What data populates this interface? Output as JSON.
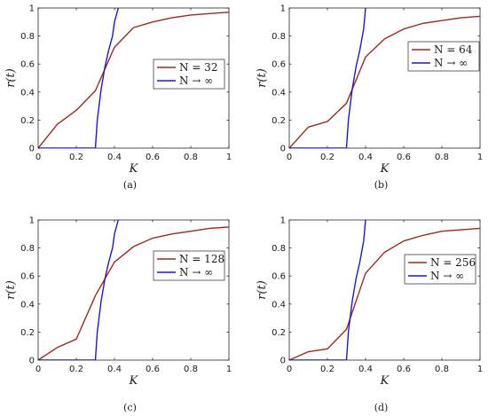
{
  "chart_data": [
    {
      "type": "line",
      "caption": "(a)",
      "xlabel": "K",
      "ylabel": "r(t)",
      "xlim": [
        0,
        1
      ],
      "ylim": [
        0,
        1
      ],
      "xticks": [
        "0",
        "0.2",
        "0.4",
        "0.6",
        "0.8",
        "1"
      ],
      "yticks": [
        "0",
        "0.2",
        "0.4",
        "0.6",
        "0.8",
        "1"
      ],
      "grid": false,
      "legend_position": "center-right",
      "series": [
        {
          "name": "N = 32",
          "color": "#a0291b",
          "x": [
            0,
            0.1,
            0.2,
            0.3,
            0.4,
            0.5,
            0.6,
            0.7,
            0.8,
            0.9,
            1.0
          ],
          "y": [
            0,
            0.17,
            0.27,
            0.41,
            0.72,
            0.86,
            0.9,
            0.93,
            0.95,
            0.96,
            0.97
          ]
        },
        {
          "name": "N → ∞",
          "color": "#1a1acc",
          "x": [
            0,
            0.3,
            0.31,
            0.33,
            0.35,
            0.37,
            0.39,
            0.4,
            0.42
          ],
          "y": [
            0,
            0,
            0.2,
            0.42,
            0.58,
            0.7,
            0.8,
            0.9,
            1.0
          ]
        }
      ]
    },
    {
      "type": "line",
      "caption": "(b)",
      "xlabel": "K",
      "ylabel": "r(t)",
      "xlim": [
        0,
        1
      ],
      "ylim": [
        0,
        1
      ],
      "xticks": [
        "0",
        "0.2",
        "0.4",
        "0.6",
        "0.8",
        "1"
      ],
      "yticks": [
        "0",
        "0.2",
        "0.4",
        "0.6",
        "0.8",
        "1"
      ],
      "grid": false,
      "legend_position": "center-right",
      "series": [
        {
          "name": "N = 64",
          "color": "#a0291b",
          "x": [
            0,
            0.1,
            0.2,
            0.3,
            0.4,
            0.5,
            0.6,
            0.7,
            0.8,
            0.9,
            1.0
          ],
          "y": [
            0,
            0.15,
            0.19,
            0.32,
            0.65,
            0.78,
            0.85,
            0.89,
            0.91,
            0.93,
            0.94
          ]
        },
        {
          "name": "N → ∞",
          "color": "#1a1acc",
          "x": [
            0,
            0.3,
            0.31,
            0.33,
            0.35,
            0.37,
            0.39,
            0.4
          ],
          "y": [
            0,
            0,
            0.2,
            0.42,
            0.58,
            0.7,
            0.85,
            1.0
          ]
        }
      ]
    },
    {
      "type": "line",
      "caption": "(c)",
      "xlabel": "K",
      "ylabel": "r(t)",
      "xlim": [
        0,
        1
      ],
      "ylim": [
        0,
        1
      ],
      "xticks": [
        "0",
        "0.2",
        "0.4",
        "0.6",
        "0.8",
        "1"
      ],
      "yticks": [
        "0",
        "0.2",
        "0.4",
        "0.6",
        "0.8",
        "1"
      ],
      "grid": false,
      "legend_position": "center-right",
      "series": [
        {
          "name": "N = 128",
          "color": "#a0291b",
          "x": [
            0,
            0.1,
            0.2,
            0.3,
            0.4,
            0.5,
            0.6,
            0.7,
            0.8,
            0.9,
            1.0
          ],
          "y": [
            0,
            0.09,
            0.15,
            0.46,
            0.7,
            0.81,
            0.87,
            0.9,
            0.92,
            0.94,
            0.95
          ]
        },
        {
          "name": "N → ∞",
          "color": "#1a1acc",
          "x": [
            0,
            0.3,
            0.31,
            0.33,
            0.35,
            0.37,
            0.39,
            0.4,
            0.42
          ],
          "y": [
            0,
            0,
            0.2,
            0.42,
            0.58,
            0.7,
            0.8,
            0.9,
            1.0
          ]
        }
      ]
    },
    {
      "type": "line",
      "caption": "(d)",
      "xlabel": "K",
      "ylabel": "r(t)",
      "xlim": [
        0,
        1
      ],
      "ylim": [
        0,
        1
      ],
      "xticks": [
        "0",
        "0.2",
        "0.4",
        "0.6",
        "0.8",
        "1"
      ],
      "yticks": [
        "0",
        "0.2",
        "0.4",
        "0.6",
        "0.8",
        "1"
      ],
      "grid": false,
      "legend_position": "center-right",
      "series": [
        {
          "name": "N = 256",
          "color": "#a0291b",
          "x": [
            0,
            0.1,
            0.2,
            0.3,
            0.4,
            0.5,
            0.6,
            0.7,
            0.8,
            0.9,
            1.0
          ],
          "y": [
            0,
            0.06,
            0.08,
            0.22,
            0.62,
            0.77,
            0.85,
            0.89,
            0.92,
            0.93,
            0.94
          ]
        },
        {
          "name": "N → ∞",
          "color": "#1a1acc",
          "x": [
            0,
            0.3,
            0.31,
            0.33,
            0.35,
            0.37,
            0.39,
            0.4
          ],
          "y": [
            0,
            0,
            0.2,
            0.42,
            0.58,
            0.7,
            0.85,
            1.0
          ]
        }
      ]
    }
  ]
}
